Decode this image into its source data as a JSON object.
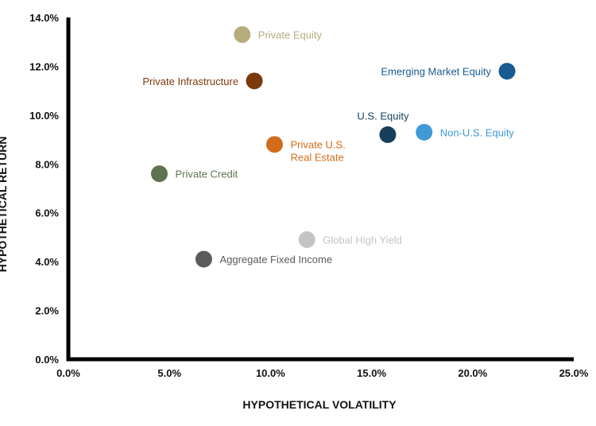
{
  "chart_data": {
    "type": "scatter",
    "xlabel": "HYPOTHETICAL VOLATILITY",
    "ylabel": "HYPOTHETICAL RETURN",
    "xlim": [
      0,
      25
    ],
    "ylim": [
      0,
      14
    ],
    "x_ticks": [
      "0.0%",
      "5.0%",
      "10.0%",
      "15.0%",
      "20.0%",
      "25.0%"
    ],
    "y_ticks": [
      "0.0%",
      "2.0%",
      "4.0%",
      "6.0%",
      "8.0%",
      "10.0%",
      "12.0%",
      "14.0%"
    ],
    "grid": false,
    "points": [
      {
        "label": "Private Equity",
        "x": 8.6,
        "y": 13.3,
        "color": "#b5ad7b",
        "label_side": "right"
      },
      {
        "label": "Private Infrastructure",
        "x": 9.2,
        "y": 11.4,
        "color": "#7b3a0e",
        "label_side": "left"
      },
      {
        "label": "Emerging Market Equity",
        "x": 21.7,
        "y": 11.8,
        "color": "#1a5a92",
        "label_side": "left"
      },
      {
        "label": "U.S. Equity",
        "x": 15.8,
        "y": 9.2,
        "color": "#173f5b",
        "label_side": "above"
      },
      {
        "label": "Non-U.S. Equity",
        "x": 17.6,
        "y": 9.3,
        "color": "#3f9ad6",
        "label_side": "right"
      },
      {
        "label": "Private U.S.\nReal Estate",
        "x": 10.2,
        "y": 8.8,
        "color": "#d26c1a",
        "label_side": "right"
      },
      {
        "label": "Private Credit",
        "x": 4.5,
        "y": 7.6,
        "color": "#5e7350",
        "label_side": "right"
      },
      {
        "label": "Global High Yield",
        "x": 11.8,
        "y": 4.9,
        "color": "#c4c4c4",
        "label_side": "right"
      },
      {
        "label": "Aggregate Fixed Income",
        "x": 6.7,
        "y": 4.1,
        "color": "#5b5b5b",
        "label_side": "right"
      }
    ]
  }
}
